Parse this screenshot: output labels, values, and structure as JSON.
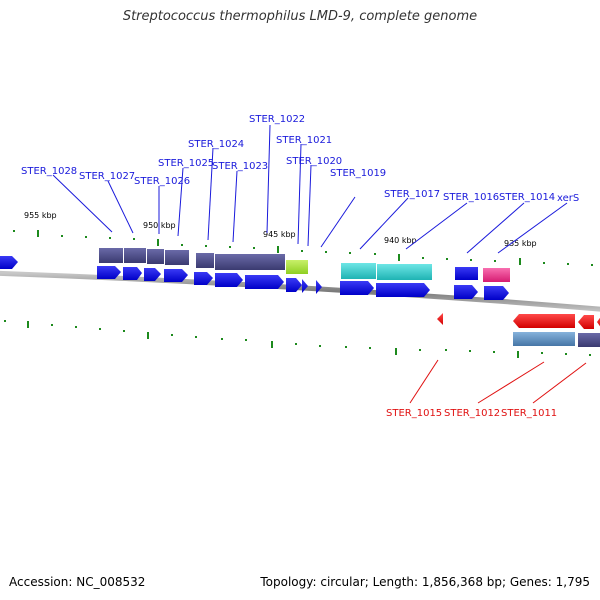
{
  "title": "Streptococcus thermophilus LMD-9, complete genome",
  "footer": {
    "accession": "Accession: NC_008532",
    "summary": "Topology: circular; Length: 1,856,368 bp; Genes: 1,795"
  },
  "scale_labels": [
    "955 kbp",
    "950 kbp",
    "945 kbp",
    "940 kbp",
    "935 kbp"
  ],
  "forward_gene_labels": [
    "STER_1028",
    "STER_1027",
    "STER_1026",
    "STER_1025",
    "STER_1024",
    "STER_1023",
    "STER_1022",
    "STER_1021",
    "STER_1020",
    "STER_1019",
    "STER_1017",
    "STER_1016",
    "STER_1014",
    "xerS"
  ],
  "reverse_gene_labels": [
    "STER_1015",
    "STER_1012",
    "STER_1011"
  ],
  "colors": {
    "forward_label": "#1a1adb",
    "reverse_label": "#e01010",
    "forward_gene": "#0a0ae6",
    "reverse_gene": "#ee1111",
    "cog_purple": "#4a4a8c",
    "cog_green": "#a6e23a",
    "cog_cyan": "#29cccc",
    "cog_pink": "#ee2c8a",
    "cog_steelblue": "#5b8fc2",
    "tick": "#1d8a1d",
    "backbone": "#8c8c8c"
  }
}
